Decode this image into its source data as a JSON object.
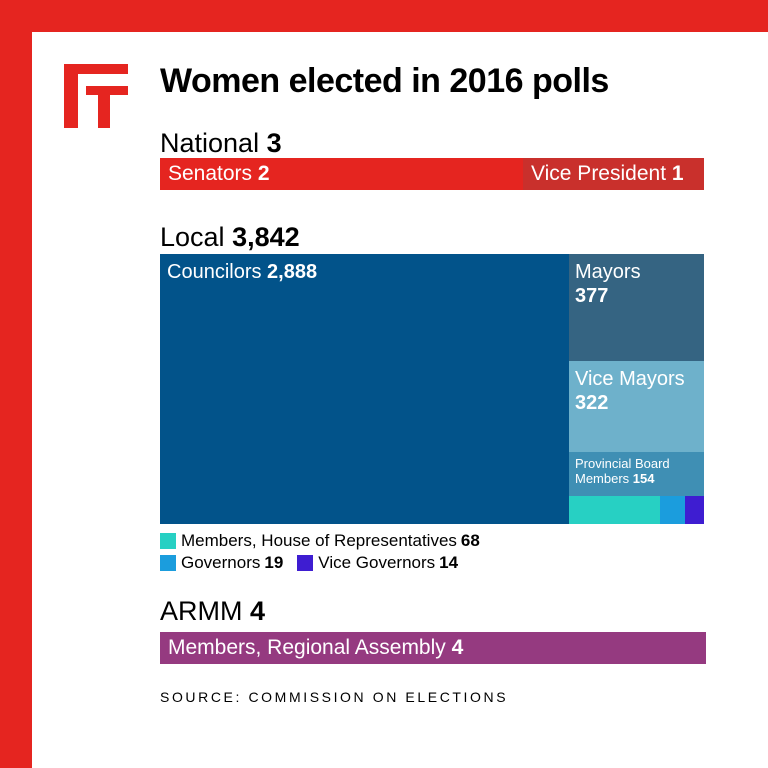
{
  "title": "Women elected in 2016 polls",
  "colors": {
    "frame": "#e52520",
    "national": "#e52520",
    "vice_president": "#c9302c",
    "councilors": "#02538a",
    "mayors": "#356482",
    "vice_mayors": "#6eb1cb",
    "provincial_board": "#3f8fb4",
    "house_reps": "#27d0c3",
    "governors": "#1b9ddd",
    "vice_governors": "#3e1dd1",
    "armm": "#953a80"
  },
  "legend": {
    "house": {
      "label": "Members, House of Representatives",
      "value": "68"
    },
    "governors": {
      "label": "Governors",
      "value": "19"
    },
    "vice_governors": {
      "label": "Vice Governors",
      "value": "14"
    }
  },
  "source": "SOURCE: COMMISSION ON ELECTIONS",
  "chart_data": {
    "type": "treemap",
    "title": "Women elected in 2016 polls",
    "groups": [
      {
        "name": "National",
        "total": 3,
        "total_label": "3",
        "items": [
          {
            "name": "Senators",
            "value": 2,
            "value_label": "2"
          },
          {
            "name": "Vice President",
            "value": 1,
            "value_label": "1"
          }
        ]
      },
      {
        "name": "Local",
        "total": 3842,
        "total_label": "3,842",
        "items": [
          {
            "name": "Councilors",
            "value": 2888,
            "value_label": "2,888"
          },
          {
            "name": "Mayors",
            "value": 377,
            "value_label": "377"
          },
          {
            "name": "Vice Mayors",
            "value": 322,
            "value_label": "322"
          },
          {
            "name": "Provincial Board Members",
            "value": 154,
            "value_label": "154"
          },
          {
            "name": "Members, House of Representatives",
            "value": 68,
            "value_label": "68"
          },
          {
            "name": "Governors",
            "value": 19,
            "value_label": "19"
          },
          {
            "name": "Vice Governors",
            "value": 14,
            "value_label": "14"
          }
        ]
      },
      {
        "name": "ARMM",
        "total": 4,
        "total_label": "4",
        "items": [
          {
            "name": "Members, Regional Assembly",
            "value": 4,
            "value_label": "4"
          }
        ]
      }
    ],
    "source": "SOURCE: COMMISSION ON ELECTIONS"
  }
}
